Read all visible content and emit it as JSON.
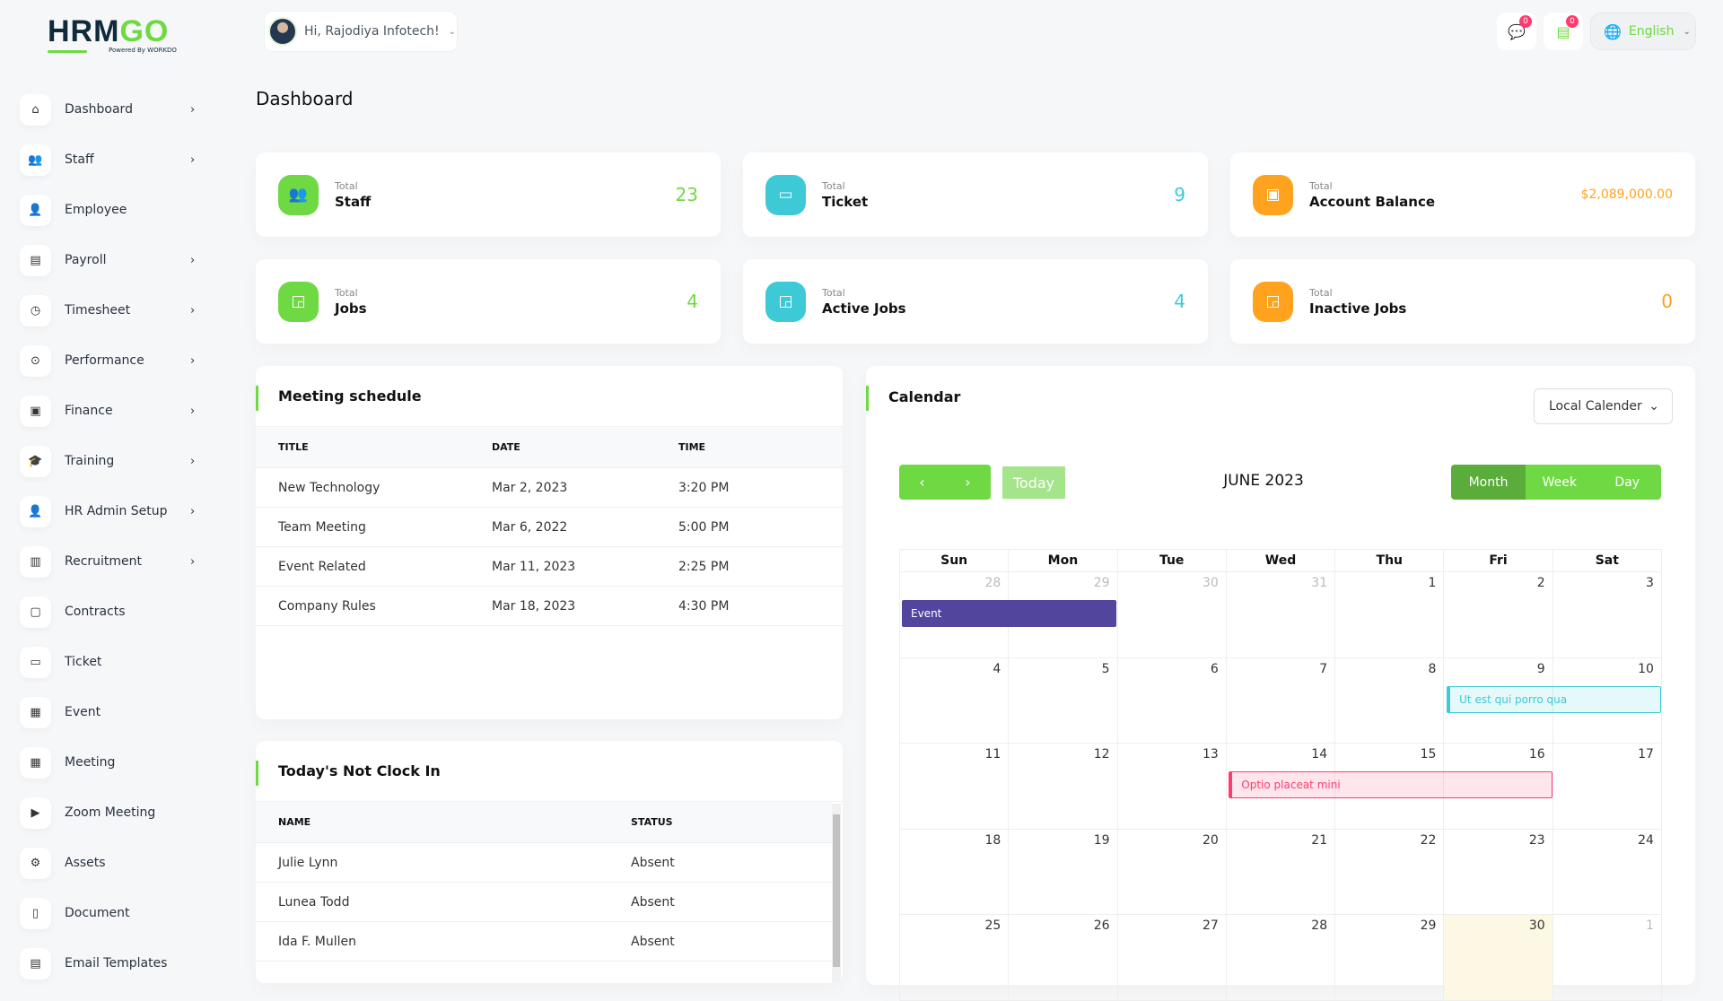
{
  "brand": {
    "logo_text": "HRMGO",
    "powered": "Powered By WORKDO"
  },
  "header": {
    "greeting": "Hi, Rajodiya Infotech!",
    "messages_badge": "0",
    "notifications_badge": "0",
    "language": "English"
  },
  "sidebar": {
    "items": [
      {
        "label": "Dashboard",
        "icon": "home-icon",
        "glyph": "⌂",
        "arrow": true
      },
      {
        "label": "Staff",
        "icon": "users-icon",
        "glyph": "👥",
        "arrow": true
      },
      {
        "label": "Employee",
        "icon": "user-icon",
        "glyph": "👤",
        "arrow": false
      },
      {
        "label": "Payroll",
        "icon": "receipt-icon",
        "glyph": "▤",
        "arrow": true
      },
      {
        "label": "Timesheet",
        "icon": "clock-icon",
        "glyph": "◷",
        "arrow": true
      },
      {
        "label": "Performance",
        "icon": "target-icon",
        "glyph": "⊙",
        "arrow": true
      },
      {
        "label": "Finance",
        "icon": "wallet-icon",
        "glyph": "▣",
        "arrow": true
      },
      {
        "label": "Training",
        "icon": "school-icon",
        "glyph": "🎓",
        "arrow": true
      },
      {
        "label": "HR Admin Setup",
        "icon": "user-plus-icon",
        "glyph": "👤",
        "arrow": true
      },
      {
        "label": "Recruitment",
        "icon": "license-icon",
        "glyph": "▥",
        "arrow": true
      },
      {
        "label": "Contracts",
        "icon": "device-floppy-icon",
        "glyph": "▢",
        "arrow": false
      },
      {
        "label": "Ticket",
        "icon": "ticket-icon",
        "glyph": "▭",
        "arrow": false
      },
      {
        "label": "Event",
        "icon": "calendar-event-icon",
        "glyph": "▦",
        "arrow": false
      },
      {
        "label": "Meeting",
        "icon": "calendar-time-icon",
        "glyph": "▦",
        "arrow": false
      },
      {
        "label": "Zoom Meeting",
        "icon": "video-icon",
        "glyph": "▶",
        "arrow": false
      },
      {
        "label": "Assets",
        "icon": "gear-icon",
        "glyph": "⚙",
        "arrow": false
      },
      {
        "label": "Document",
        "icon": "file-icon",
        "glyph": "▯",
        "arrow": false
      },
      {
        "label": "Email Templates",
        "icon": "template-icon",
        "glyph": "▤",
        "arrow": false
      }
    ]
  },
  "page_title": "Dashboard",
  "stats": [
    {
      "small": "Total",
      "label": "Staff",
      "value": "23",
      "color": "#6fd943",
      "icon": "users-icon",
      "glyph": "👥"
    },
    {
      "small": "Total",
      "label": "Ticket",
      "value": "9",
      "color": "#3ec9d6",
      "icon": "ticket-icon",
      "glyph": "▭"
    },
    {
      "small": "Total",
      "label": "Account Balance",
      "value": "$2,089,000.00",
      "color": "#ffa21d",
      "icon": "wallet-icon",
      "glyph": "▣"
    },
    {
      "small": "Total",
      "label": "Jobs",
      "value": "4",
      "color": "#6fd943",
      "icon": "cast-icon",
      "glyph": "◲"
    },
    {
      "small": "Total",
      "label": "Active Jobs",
      "value": "4",
      "color": "#3ec9d6",
      "icon": "cast-icon",
      "glyph": "◲"
    },
    {
      "small": "Total",
      "label": "Inactive Jobs",
      "value": "0",
      "color": "#ffa21d",
      "icon": "cast-icon",
      "glyph": "◲"
    }
  ],
  "meetings": {
    "title": "Meeting schedule",
    "columns": [
      "TITLE",
      "DATE",
      "TIME"
    ],
    "rows": [
      [
        "New Technology",
        "Mar 2, 2023",
        "3:20 PM"
      ],
      [
        "Team Meeting",
        "Mar 6, 2022",
        "5:00 PM"
      ],
      [
        "Event Related",
        "Mar 11, 2023",
        "2:25 PM"
      ],
      [
        "Company Rules",
        "Mar 18, 2023",
        "4:30 PM"
      ]
    ]
  },
  "not_clock_in": {
    "title": "Today's Not Clock In",
    "columns": [
      "NAME",
      "STATUS"
    ],
    "rows": [
      [
        "Julie Lynn",
        "Absent"
      ],
      [
        "Lunea Todd",
        "Absent"
      ],
      [
        "Ida F. Mullen",
        "Absent"
      ]
    ]
  },
  "calendar": {
    "title": "Calendar",
    "source_select": "Local Calender",
    "today": "Today",
    "month_title": "JUNE 2023",
    "views": [
      "Month",
      "Week",
      "Day"
    ],
    "active_view": "Month",
    "weekdays": [
      "Sun",
      "Mon",
      "Tue",
      "Wed",
      "Thu",
      "Fri",
      "Sat"
    ],
    "weeks": [
      [
        "28",
        "29",
        "30",
        "31",
        "1",
        "2",
        "3"
      ],
      [
        "4",
        "5",
        "6",
        "7",
        "8",
        "9",
        "10"
      ],
      [
        "11",
        "12",
        "13",
        "14",
        "15",
        "16",
        "17"
      ],
      [
        "18",
        "19",
        "20",
        "21",
        "22",
        "23",
        "24"
      ],
      [
        "25",
        "26",
        "27",
        "28",
        "29",
        "30",
        "1"
      ]
    ],
    "events": [
      {
        "title": "Event",
        "start": "2023-05-28",
        "end": "2023-05-29",
        "color": "#51459d"
      },
      {
        "title": "Ut est qui porro qua",
        "start": "2023-06-09",
        "end": "2023-06-10",
        "color": "#3ec9d6"
      },
      {
        "title": "Optio placeat mini",
        "start": "2023-06-14",
        "end": "2023-06-16",
        "color": "#ff3a6e"
      }
    ],
    "today_date": "2023-06-30"
  }
}
